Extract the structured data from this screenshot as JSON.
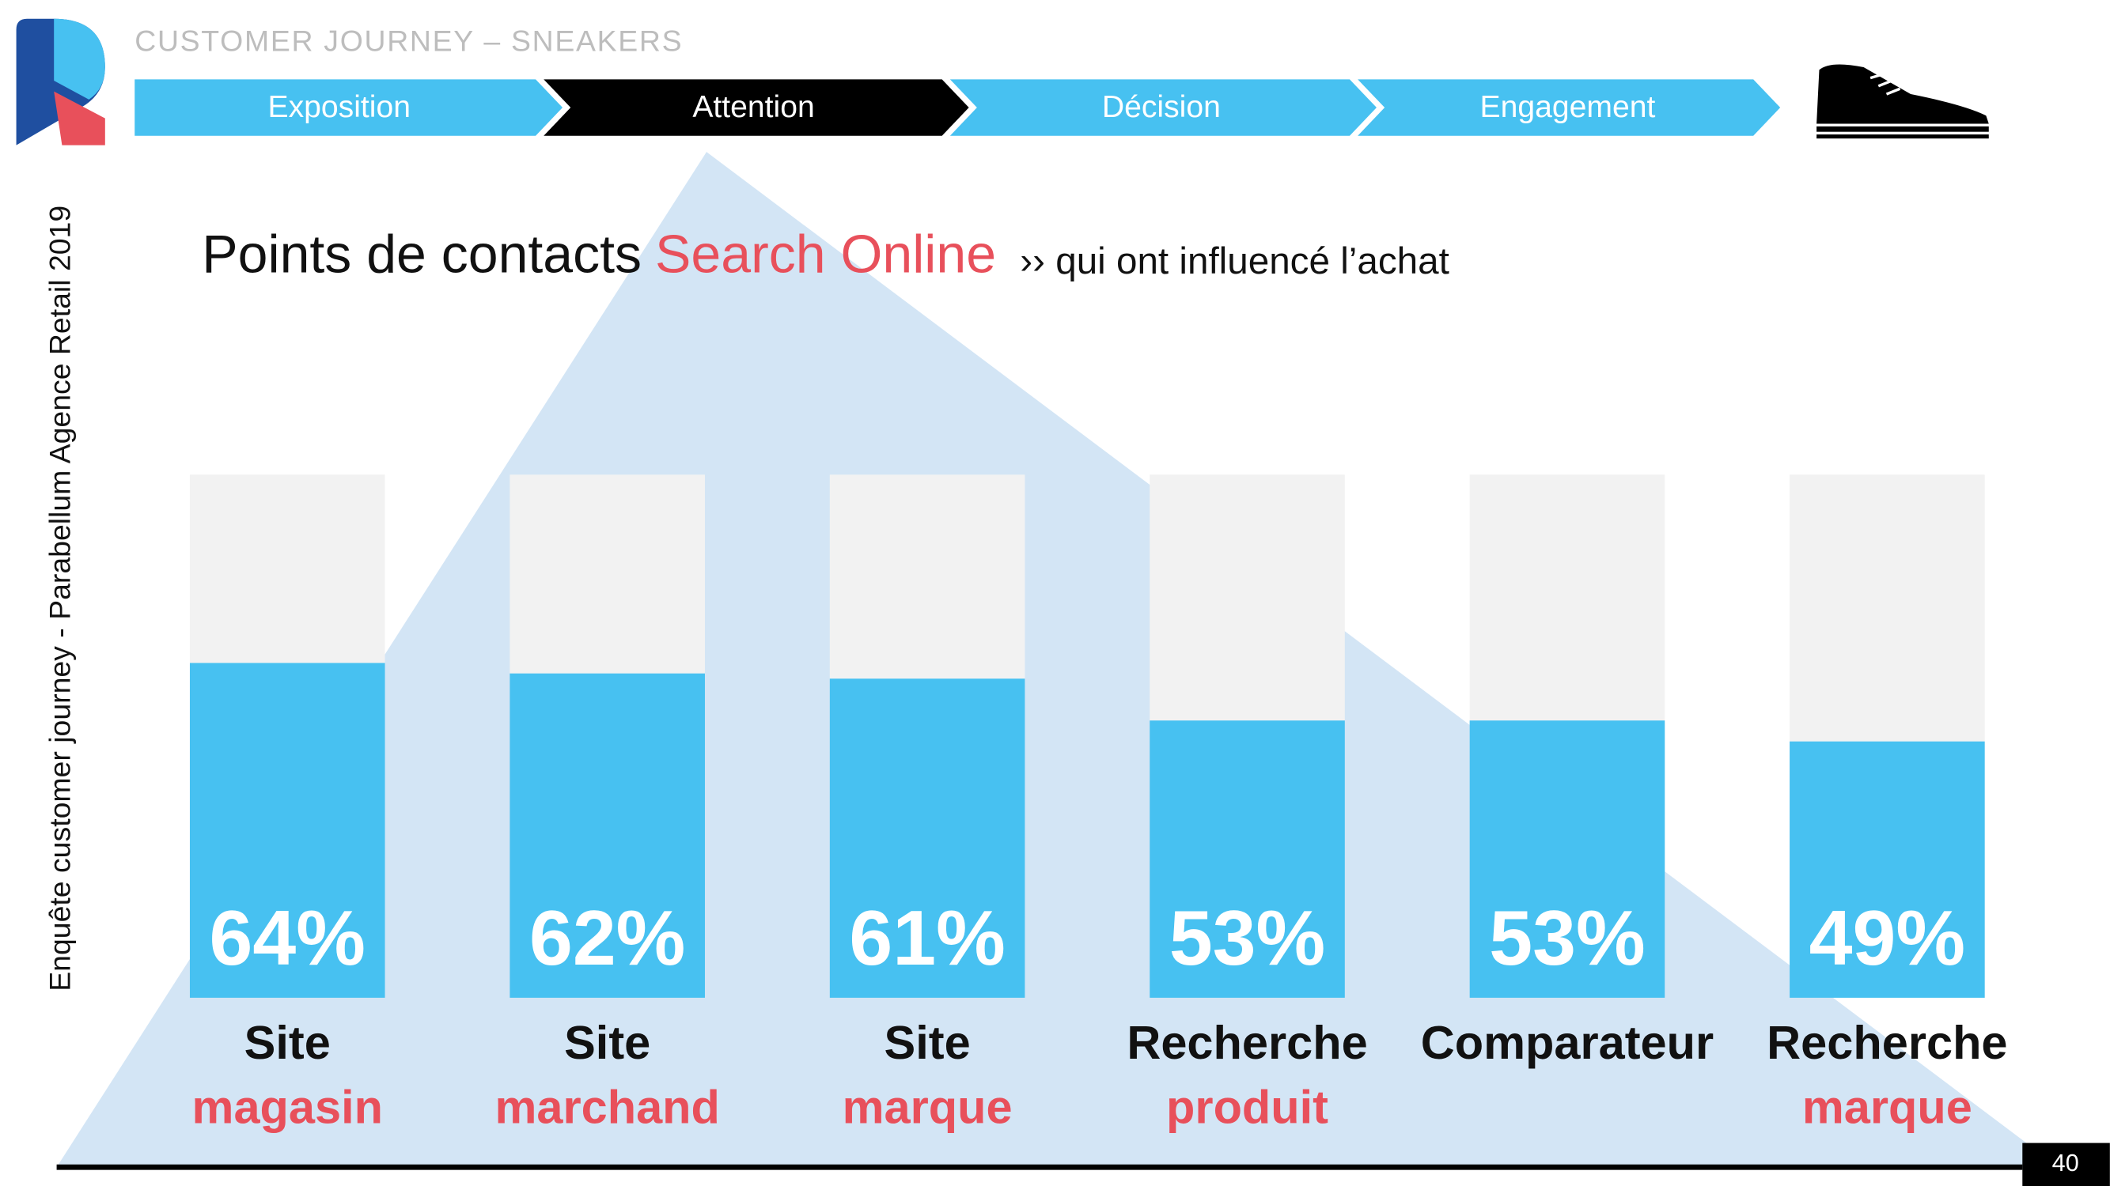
{
  "header": {
    "title": "CUSTOMER JOURNEY – SNEAKERS",
    "steps": [
      "Exposition",
      "Attention",
      "Décision",
      "Engagement"
    ]
  },
  "side_note": "Enquête customer journey - Parabellum Agence Retail 2019",
  "page_number": "40",
  "chart_data": {
    "type": "bar",
    "title": "Points de contacts",
    "title_highlight": "Search Online",
    "subtitle": "›› qui ont influencé l’achat",
    "categories": [
      [
        "Site",
        "magasin"
      ],
      [
        "Site",
        "marchand"
      ],
      [
        "Site",
        "marque"
      ],
      [
        "Recherche",
        "produit"
      ],
      [
        "Comparateur"
      ],
      [
        "Recherche",
        "marque"
      ]
    ],
    "values": [
      64,
      62,
      61,
      53,
      53,
      49
    ],
    "value_labels": [
      "64%",
      "62%",
      "61%",
      "53%",
      "53%",
      "49%"
    ],
    "ylim": [
      0,
      100
    ],
    "color": "#47c1f1",
    "track_color": "#f2f2f2"
  }
}
